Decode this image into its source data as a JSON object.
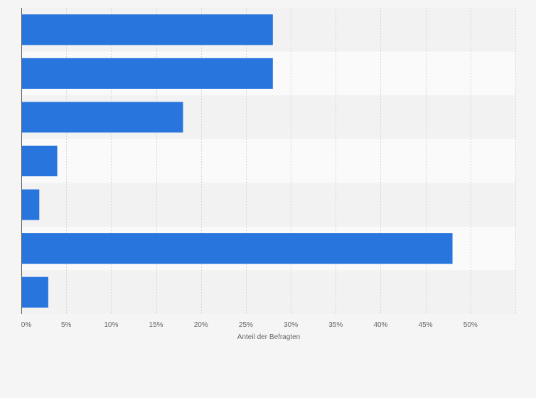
{
  "chart_data": {
    "type": "bar",
    "orientation": "horizontal",
    "categories": [
      "",
      "",
      "",
      "",
      "",
      "",
      ""
    ],
    "values": [
      28,
      28,
      18,
      4,
      2,
      48,
      3
    ],
    "xlabel": "Anteil der Befragten",
    "ylabel": "",
    "xlim": [
      0,
      55
    ],
    "x_tick_values": [
      0,
      5,
      10,
      15,
      20,
      25,
      30,
      35,
      40,
      45,
      50
    ],
    "x_tick_labels": [
      "0%",
      "5%",
      "10%",
      "15%",
      "20%",
      "25%",
      "30%",
      "35%",
      "40%",
      "45%",
      "50%"
    ],
    "grid": true,
    "legend": "none",
    "colors": {
      "bar": "#2876dd",
      "band_a": "#f2f2f3",
      "band_b": "#fafafa",
      "grid": "#d6d6d8",
      "axis": "#555555",
      "text": "#666666",
      "background": "#f5f5f6"
    }
  }
}
